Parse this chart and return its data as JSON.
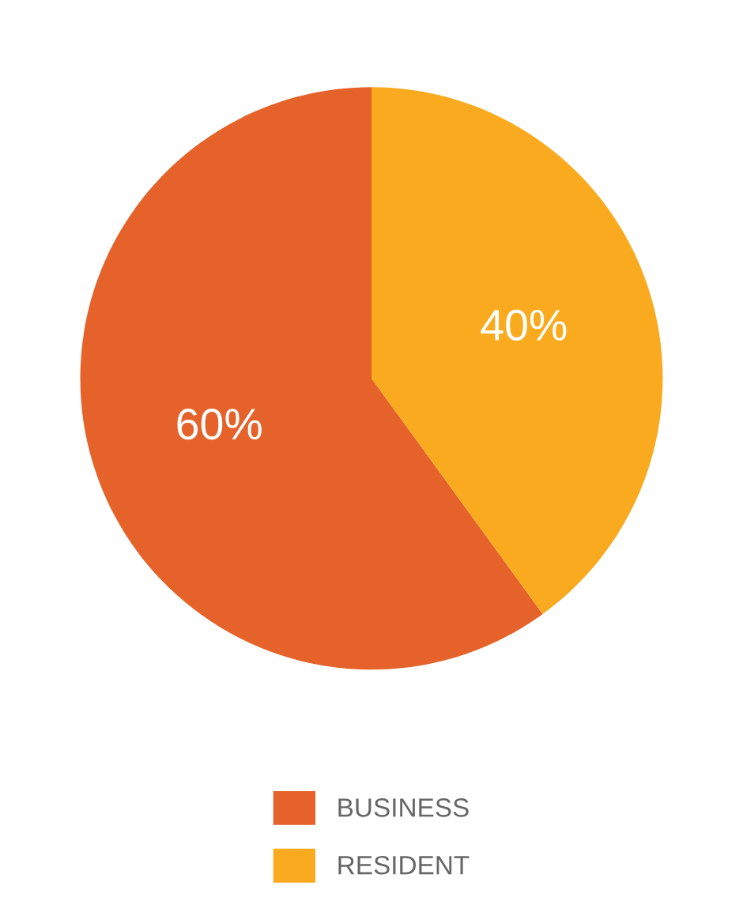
{
  "chart_data": {
    "type": "pie",
    "categories": [
      "BUSINESS",
      "RESIDENT"
    ],
    "values": [
      60,
      40
    ],
    "value_labels": [
      "60%",
      "40%"
    ],
    "colors": [
      "#e5622a",
      "#f9aa1e"
    ],
    "legend": "bottom"
  }
}
